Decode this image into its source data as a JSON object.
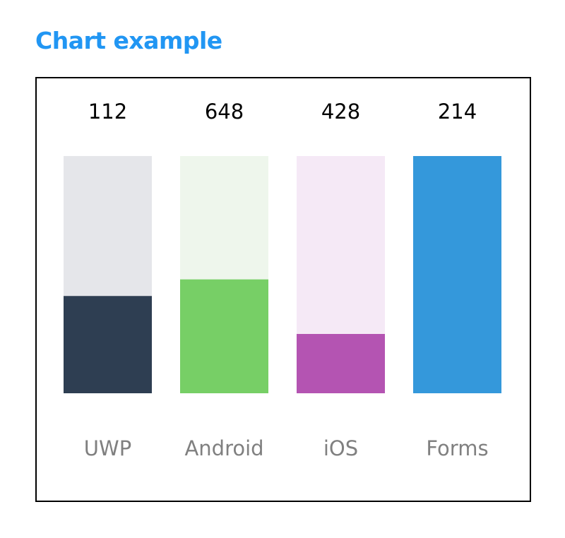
{
  "title": "Chart example",
  "chart_data": {
    "type": "bar",
    "categories": [
      "UWP",
      "Android",
      "iOS",
      "Forms"
    ],
    "value_labels": [
      "112",
      "648",
      "428",
      "214"
    ],
    "fill_fractions": [
      0.41,
      0.48,
      0.25,
      1.0
    ],
    "colors": [
      {
        "track": "#e5e6ea",
        "fill": "#2e3e52"
      },
      {
        "track": "#eef6ec",
        "fill": "#77cf66"
      },
      {
        "track": "#f5e9f6",
        "fill": "#b454b2"
      },
      {
        "track": "#3498db",
        "fill": "#3498db"
      }
    ],
    "grid": false,
    "legend": "none"
  }
}
